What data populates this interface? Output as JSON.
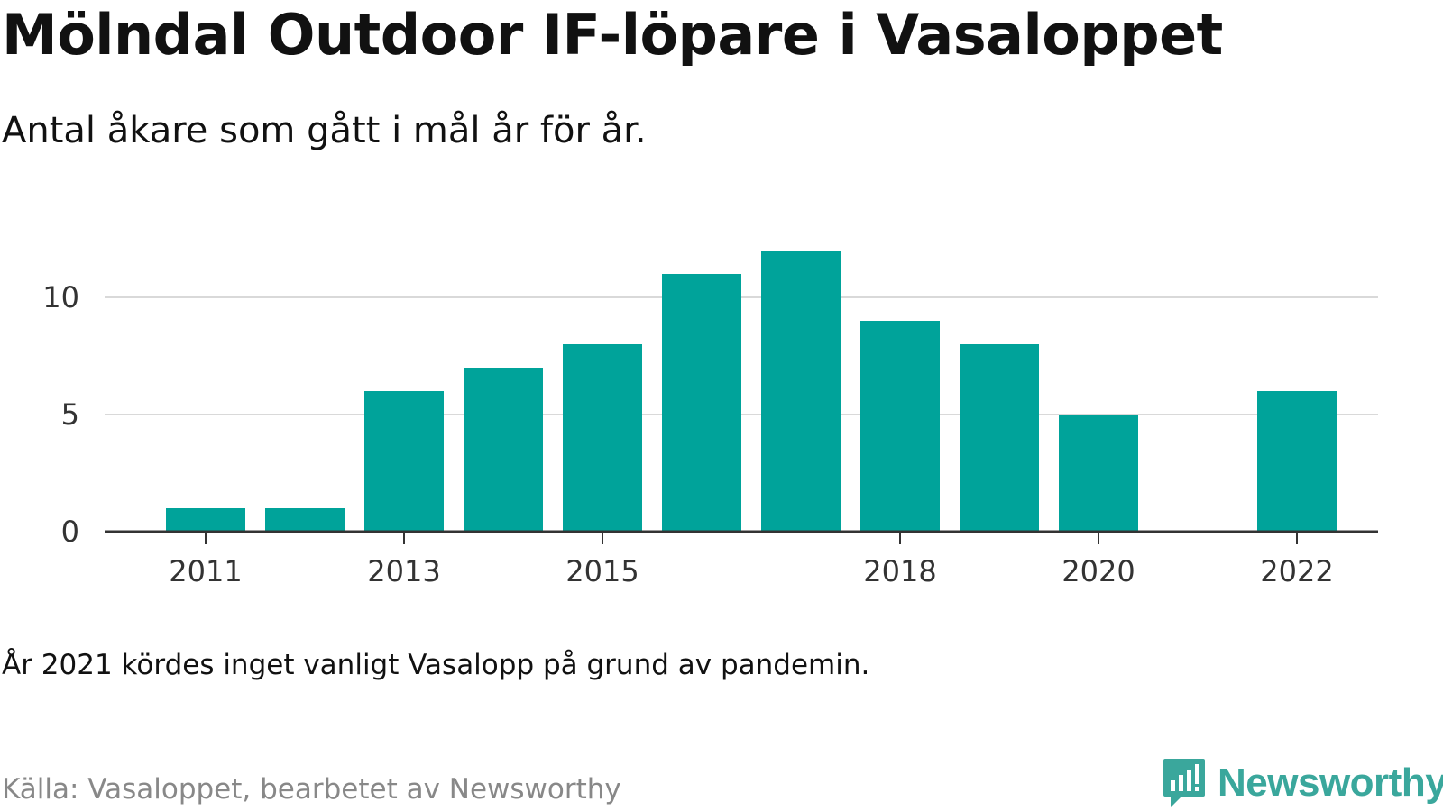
{
  "title": "Mölndal Outdoor IF-löpare i Vasaloppet",
  "subtitle": "Antal åkare som gått i mål år för år.",
  "note": "År 2021 kördes inget vanligt Vasalopp på grund av pandemin.",
  "source": "Källa: Vasaloppet, bearbetet av Newsworthy",
  "logo": {
    "text": "Newsworthy",
    "icon": "newsworthy-logo-icon",
    "color": "#3aa79c"
  },
  "chart_data": {
    "type": "bar",
    "x": [
      2011,
      2012,
      2013,
      2014,
      2015,
      2016,
      2017,
      2018,
      2019,
      2020,
      2022
    ],
    "values": [
      1,
      1,
      6,
      7,
      8,
      11,
      12,
      9,
      8,
      5,
      6
    ],
    "x_ticks": [
      "2011",
      "2013",
      "2015",
      "2018",
      "2020",
      "2022"
    ],
    "y_ticks": [
      "0",
      "5",
      "10"
    ],
    "ylim": [
      0,
      12
    ],
    "xlim": [
      2010.5,
      2023
    ],
    "bar_color": "#00a39a",
    "grid": true,
    "legend": false
  }
}
